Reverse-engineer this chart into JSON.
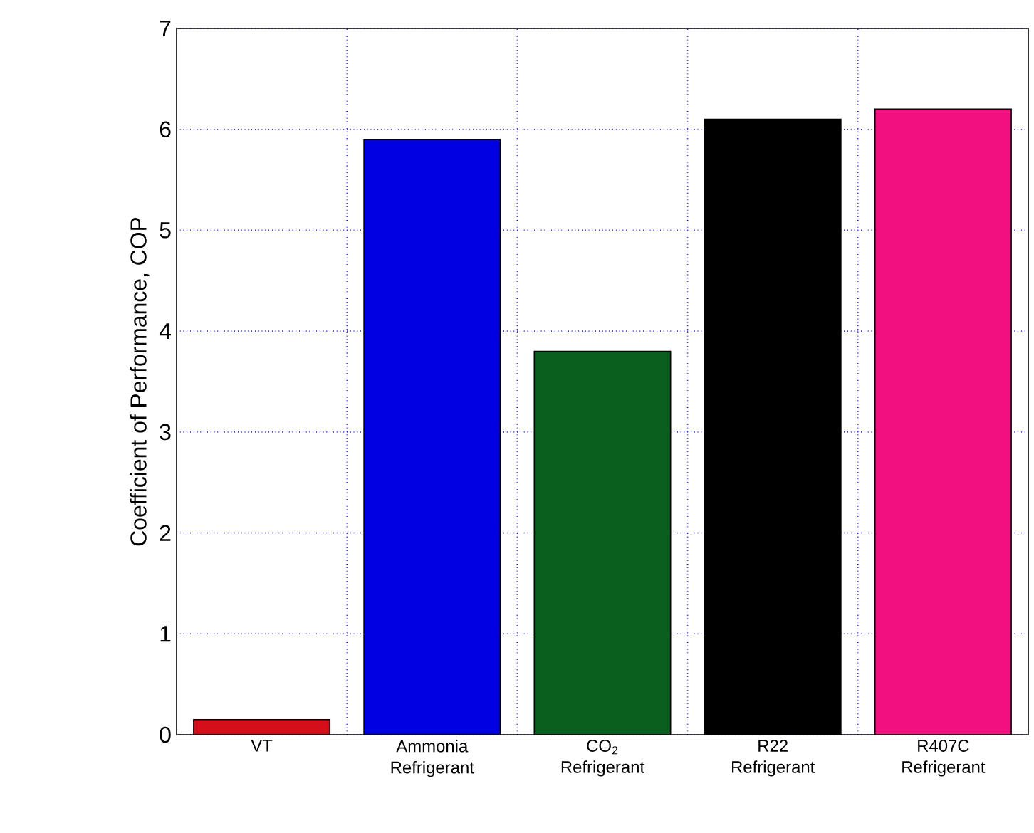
{
  "chart_data": {
    "type": "bar",
    "ylabel": "Coefficient of Performance, COP",
    "categories": [
      "VT",
      "Ammonia Refrigerant",
      "CO$_{2}$ Refrigerant",
      "R22 Refrigerant",
      "R407C Refrigerant"
    ],
    "values": [
      0.15,
      5.9,
      3.8,
      6.1,
      6.2
    ],
    "colors": [
      "#d40f1a",
      "#0000e0",
      "#0a5e1e",
      "#000000",
      "#f0107f"
    ],
    "ylim": [
      0,
      7
    ],
    "yticks": [
      0,
      1,
      2,
      3,
      4,
      5,
      6,
      7
    ],
    "grid": "y"
  }
}
